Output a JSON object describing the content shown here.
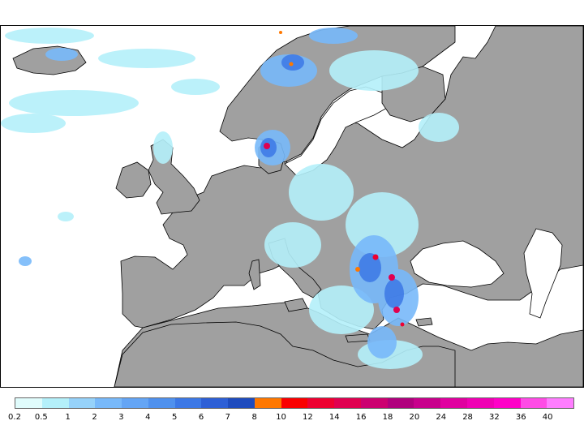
{
  "legend": {
    "colors": [
      "#e0fcfc",
      "#b4f0fa",
      "#96d2fa",
      "#78b9fa",
      "#64a5f5",
      "#4f91ee",
      "#3c78e6",
      "#2d5fd6",
      "#1e4bbe",
      "#ff7800",
      "#fa0000",
      "#ee0030",
      "#e00050",
      "#cc0070",
      "#b0007d",
      "#c8008c",
      "#e000a0",
      "#f000b4",
      "#ff00c8",
      "#ff4be6",
      "#ff7dff"
    ],
    "labels": [
      "0.2",
      "0.5",
      "1",
      "2",
      "3",
      "4",
      "5",
      "6",
      "7",
      "8",
      "10",
      "12",
      "14",
      "16",
      "18",
      "20",
      "24",
      "28",
      "32",
      "36",
      "40"
    ]
  }
}
